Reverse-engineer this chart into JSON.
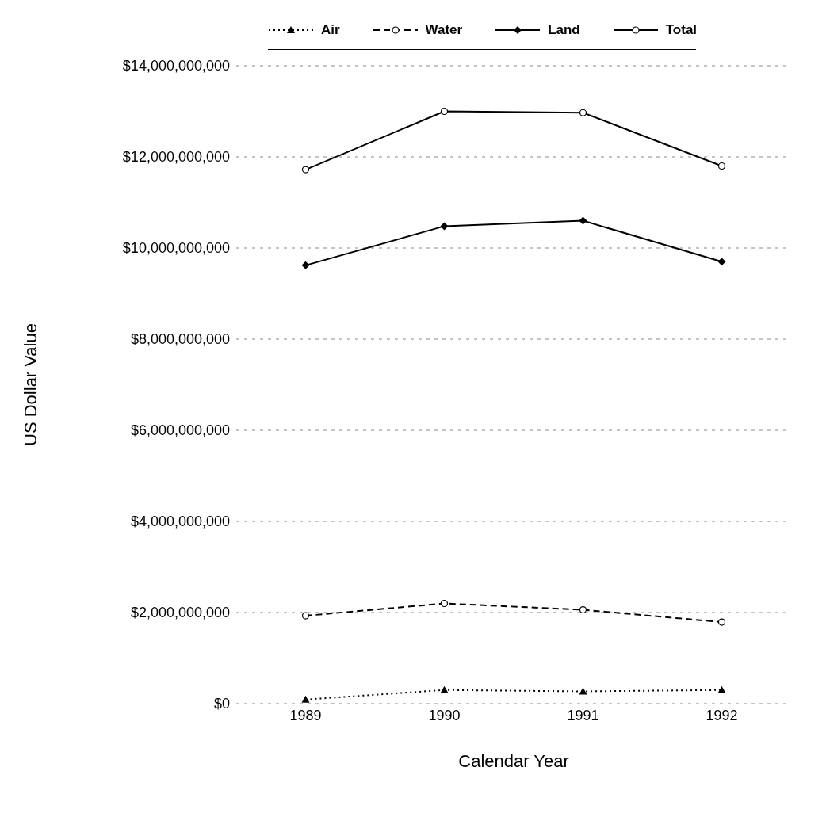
{
  "chart_data": {
    "type": "line",
    "xlabel": "Calendar Year",
    "ylabel": "US Dollar Value",
    "categories": [
      "1989",
      "1990",
      "1991",
      "1992"
    ],
    "series": [
      {
        "name": "Air",
        "color": "#000000",
        "marker": "triangle",
        "line_style": "dotted",
        "values": [
          90000000,
          300000000,
          270000000,
          300000000
        ]
      },
      {
        "name": "Water",
        "color": "#000000",
        "marker": "circle",
        "line_style": "dashed",
        "values": [
          1930000000,
          2200000000,
          2060000000,
          1790000000
        ]
      },
      {
        "name": "Land",
        "color": "#000000",
        "marker": "diamond",
        "line_style": "solid",
        "values": [
          9620000000,
          10480000000,
          10600000000,
          9700000000
        ]
      },
      {
        "name": "Total",
        "color": "#000000",
        "marker": "circle",
        "line_style": "solid",
        "values": [
          11720000000,
          13000000000,
          12970000000,
          11800000000
        ]
      }
    ],
    "ylim": [
      0,
      14000000000
    ],
    "yticks": [
      {
        "value": 0,
        "label": "$0"
      },
      {
        "value": 2000000000,
        "label": "$2,000,000,000"
      },
      {
        "value": 4000000000,
        "label": "$4,000,000,000"
      },
      {
        "value": 6000000000,
        "label": "$6,000,000,000"
      },
      {
        "value": 8000000000,
        "label": "$8,000,000,000"
      },
      {
        "value": 10000000000,
        "label": "$10,000,000,000"
      },
      {
        "value": 12000000000,
        "label": "$12,000,000,000"
      },
      {
        "value": 14000000000,
        "label": "$14,000,000,000"
      }
    ],
    "grid": "y",
    "legend": "top"
  }
}
